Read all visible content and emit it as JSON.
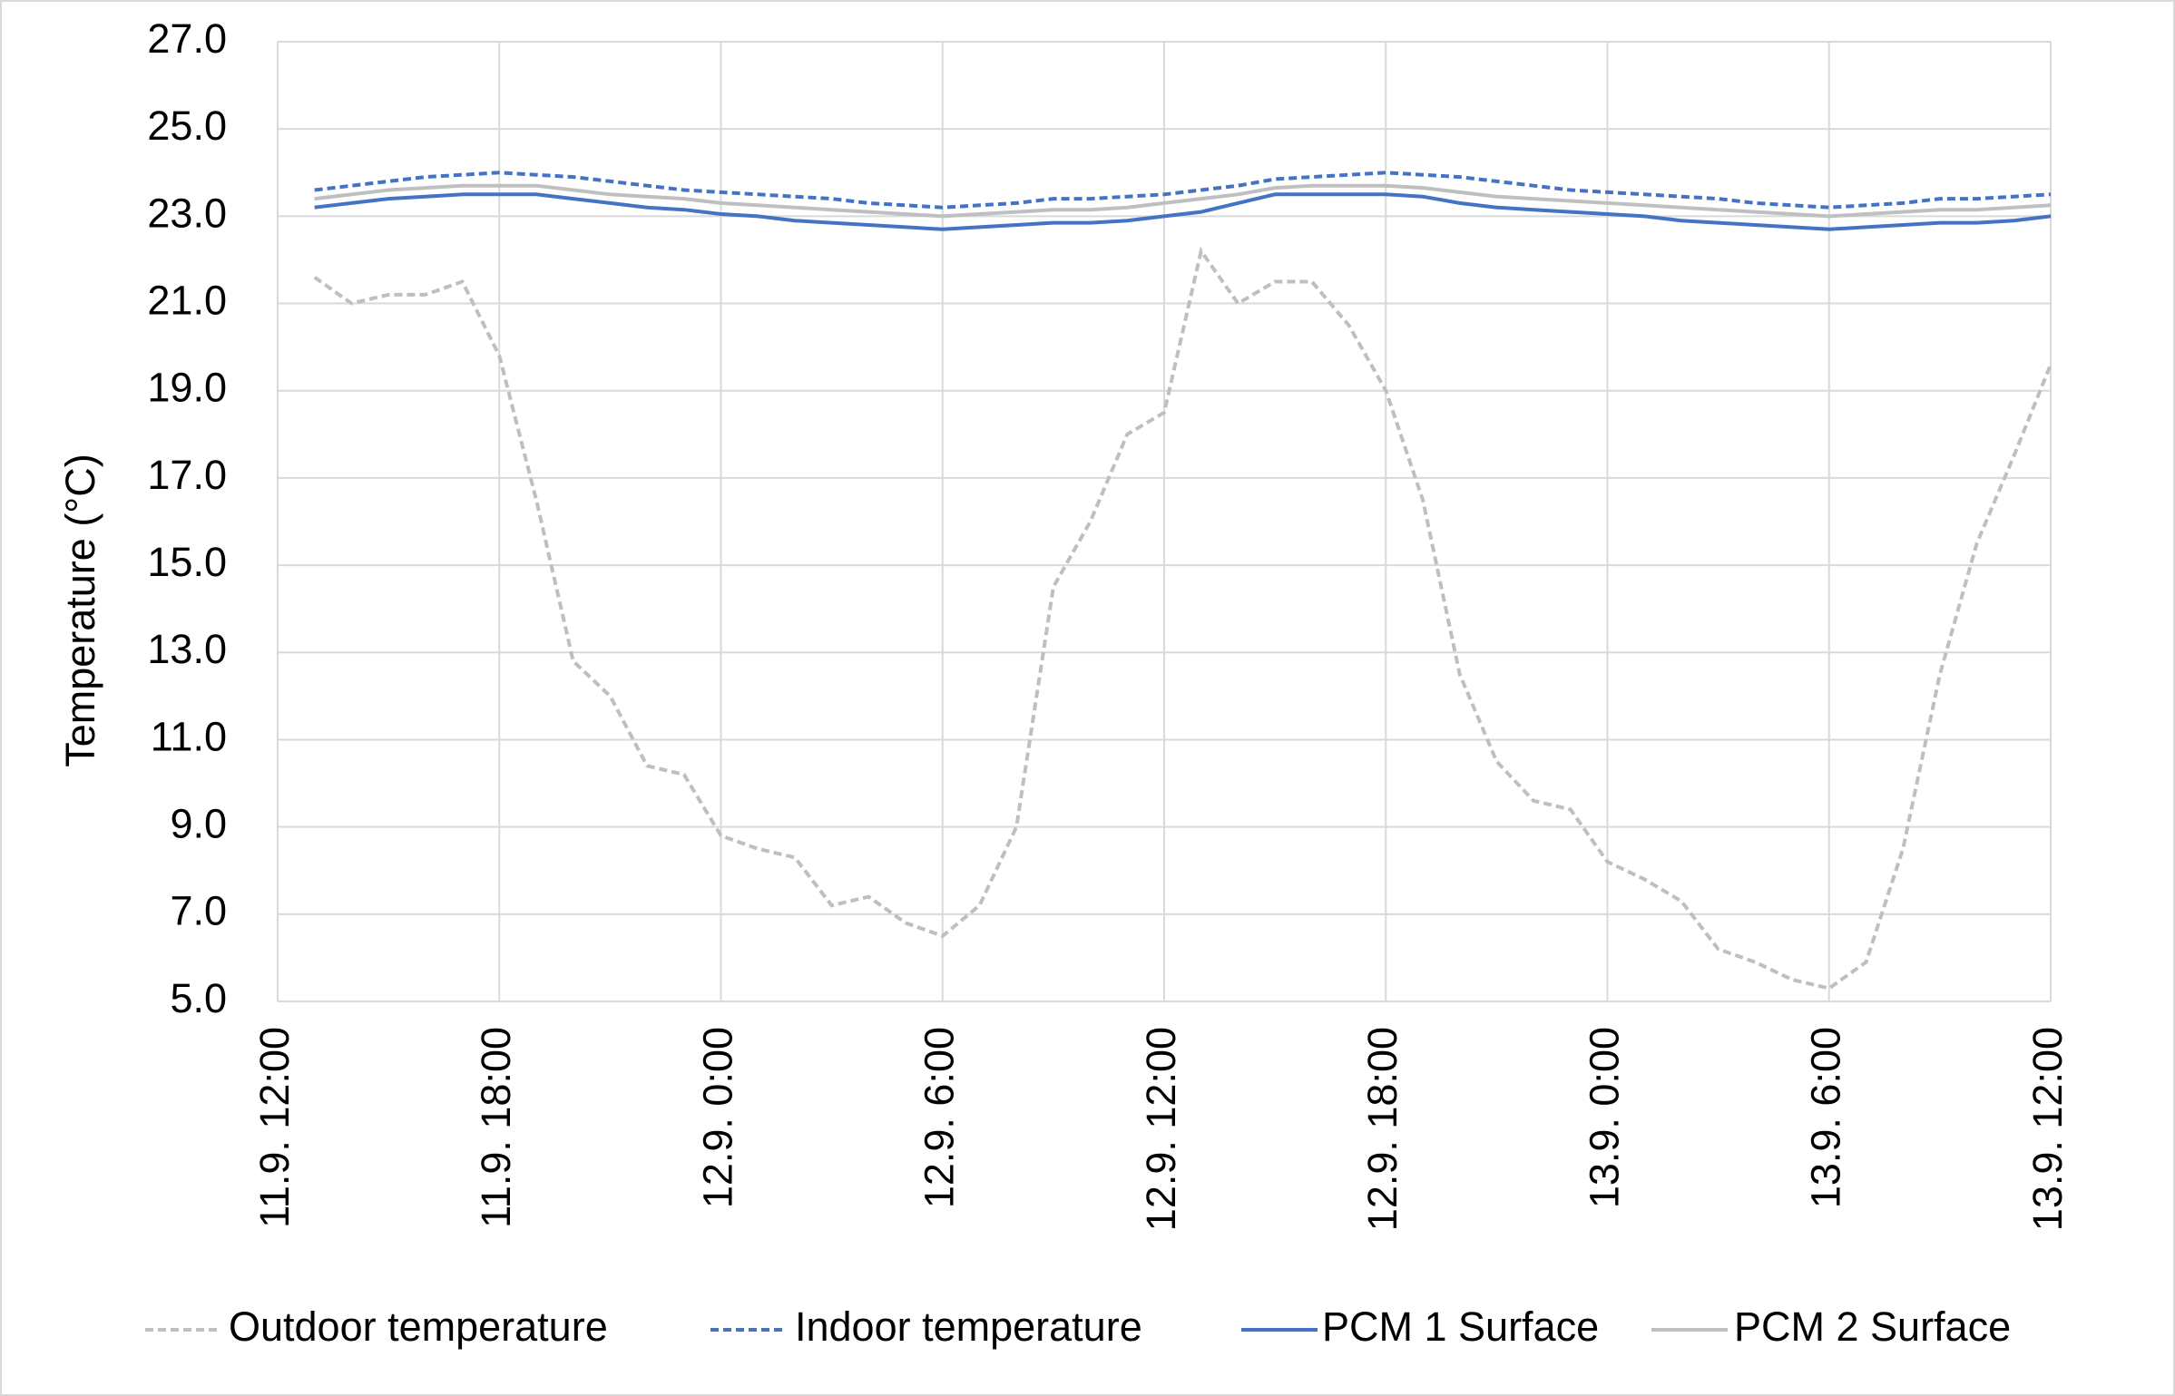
{
  "chart_data": {
    "type": "line",
    "y_label": "Temperature (°C)",
    "categories": [
      "11.9. 12:00",
      null,
      null,
      null,
      null,
      null,
      "11.9. 18:00",
      null,
      null,
      null,
      null,
      null,
      "12.9. 0:00",
      null,
      null,
      null,
      null,
      null,
      "12.9. 6:00",
      null,
      null,
      null,
      null,
      null,
      "12.9. 12:00",
      null,
      null,
      null,
      null,
      null,
      "12.9. 18:00",
      null,
      null,
      null,
      null,
      null,
      "13.9. 0:00",
      null,
      null,
      null,
      null,
      null,
      "13.9. 6:00",
      null,
      null,
      null,
      null,
      null,
      "13.9. 12:00"
    ],
    "series": [
      {
        "name": "Outdoor temperature",
        "color": "#bfbfbf",
        "dash": "dashed",
        "values": [
          null,
          21.6,
          21.0,
          21.2,
          21.2,
          21.5,
          19.8,
          16.5,
          12.8,
          12.0,
          10.4,
          10.2,
          8.8,
          8.5,
          8.3,
          7.2,
          7.4,
          6.8,
          6.5,
          7.2,
          9.0,
          14.5,
          16.0,
          18.0,
          18.5,
          22.2,
          21.0,
          21.5,
          21.5,
          20.5,
          19.0,
          16.5,
          12.5,
          10.5,
          9.6,
          9.4,
          8.2,
          7.8,
          7.3,
          6.2,
          5.9,
          5.5,
          5.3,
          5.9,
          8.5,
          12.5,
          15.5,
          17.5,
          19.6
        ]
      },
      {
        "name": "Indoor temperature",
        "color": "#4472c4",
        "dash": "dashed",
        "values": [
          null,
          23.6,
          23.7,
          23.8,
          23.9,
          23.95,
          24.0,
          23.95,
          23.9,
          23.8,
          23.7,
          23.6,
          23.55,
          23.5,
          23.45,
          23.4,
          23.3,
          23.25,
          23.2,
          23.25,
          23.3,
          23.4,
          23.4,
          23.45,
          23.5,
          23.6,
          23.7,
          23.85,
          23.9,
          23.95,
          24.0,
          23.95,
          23.9,
          23.8,
          23.7,
          23.6,
          23.55,
          23.5,
          23.45,
          23.4,
          23.3,
          23.25,
          23.2,
          23.25,
          23.3,
          23.4,
          23.4,
          23.45,
          23.5
        ]
      },
      {
        "name": "PCM 1 Surface",
        "color": "#4472c4",
        "dash": "solid",
        "values": [
          null,
          23.2,
          23.3,
          23.4,
          23.45,
          23.5,
          23.5,
          23.5,
          23.4,
          23.3,
          23.2,
          23.15,
          23.05,
          23.0,
          22.9,
          22.85,
          22.8,
          22.75,
          22.7,
          22.75,
          22.8,
          22.85,
          22.85,
          22.9,
          23.0,
          23.1,
          23.3,
          23.5,
          23.5,
          23.5,
          23.5,
          23.45,
          23.3,
          23.2,
          23.15,
          23.1,
          23.05,
          23.0,
          22.9,
          22.85,
          22.8,
          22.75,
          22.7,
          22.75,
          22.8,
          22.85,
          22.85,
          22.9,
          23.0
        ]
      },
      {
        "name": "PCM 2 Surface",
        "color": "#bfbfbf",
        "dash": "solid",
        "values": [
          null,
          23.4,
          23.5,
          23.6,
          23.65,
          23.7,
          23.7,
          23.7,
          23.6,
          23.5,
          23.45,
          23.4,
          23.3,
          23.25,
          23.2,
          23.15,
          23.1,
          23.05,
          23.0,
          23.05,
          23.1,
          23.15,
          23.15,
          23.2,
          23.3,
          23.4,
          23.5,
          23.65,
          23.7,
          23.7,
          23.7,
          23.65,
          23.55,
          23.45,
          23.4,
          23.35,
          23.3,
          23.25,
          23.2,
          23.15,
          23.1,
          23.05,
          23.0,
          23.05,
          23.1,
          23.15,
          23.15,
          23.2,
          23.25
        ]
      }
    ],
    "ylim": [
      5,
      27
    ],
    "yticks": [
      {
        "value": 5,
        "label": "5.0"
      },
      {
        "value": 7,
        "label": "7.0"
      },
      {
        "value": 9,
        "label": "9.0"
      },
      {
        "value": 11,
        "label": "11.0"
      },
      {
        "value": 13,
        "label": "13.0"
      },
      {
        "value": 15,
        "label": "15.0"
      },
      {
        "value": 17,
        "label": "17.0"
      },
      {
        "value": 19,
        "label": "19.0"
      },
      {
        "value": 21,
        "label": "21.0"
      },
      {
        "value": 23,
        "label": "23.0"
      },
      {
        "value": 25,
        "label": "25.0"
      },
      {
        "value": 27,
        "label": "27.0"
      }
    ],
    "grid": true,
    "legend": "bottom"
  }
}
